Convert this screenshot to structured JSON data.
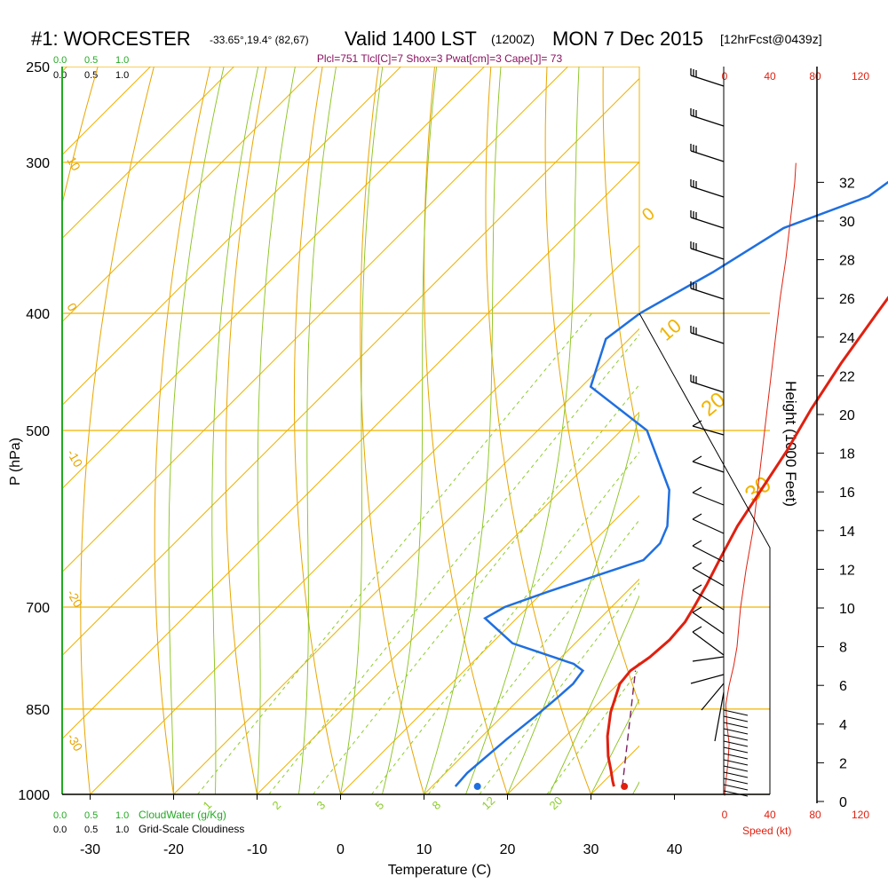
{
  "header": {
    "station": "#1: WORCESTER",
    "coords": "-33.65°,19.4° (82,67)",
    "valid": "Valid 1400 LST",
    "zulu": "(1200Z)",
    "date": "MON 7 Dec 2015",
    "forecast": "[12hrFcst@0439z]",
    "indices": "Plcl=751 Tlcl[C]=7 Shox=3 Pwat[cm]=3 Cape[J]= 73"
  },
  "cloud_scale": {
    "top_cloudwater": [
      "0.0",
      "0.5",
      "1.0"
    ],
    "top_cloudiness": [
      "0.0",
      "0.5",
      "1.0"
    ],
    "bottom_cloudwater": [
      "0.0",
      "0.5",
      "1.0"
    ],
    "bottom_cloudiness": [
      "0.0",
      "0.5",
      "1.0"
    ],
    "cloudwater_label": "CloudWater (g/Kg)",
    "cloudiness_label": "Grid-Scale Cloudiness"
  },
  "speed_axis": {
    "top_ticks": [
      "0",
      "40",
      "80",
      "120"
    ],
    "bottom_ticks": [
      "0",
      "40",
      "80",
      "120"
    ],
    "label": "Speed (kt)"
  },
  "colors": {
    "isotherm": "#f0b400",
    "dry_adiabat": "#e8a500",
    "moist_adiabat": "#88c21a",
    "mixing_ratio": "#8ccc2a",
    "temperature": "#e02010",
    "dewpoint": "#1f6fe0",
    "parcel": "#7a2060",
    "cloud_axis": "#22aa22",
    "speed": "#e02010",
    "indices_text": "#8a1060"
  },
  "chart_data": {
    "type": "line",
    "chart_kind": "skew-T log-P sounding",
    "xlabel": "Temperature (C)",
    "ylabel": "P (hPa)",
    "y2label": "Height (1000 Feet)",
    "x_ticks": [
      -30,
      -20,
      -10,
      0,
      10,
      20,
      30,
      40
    ],
    "y_ticks": [
      250,
      300,
      400,
      500,
      700,
      850,
      1000
    ],
    "y2_ticks": [
      0,
      2,
      4,
      6,
      8,
      10,
      12,
      14,
      16,
      18,
      20,
      22,
      24,
      26,
      28,
      30,
      32
    ],
    "dry_adiabat_labels": [
      "10",
      "0",
      "-10",
      "-20",
      "-30"
    ],
    "moist_adiabat_labels": [
      "0",
      "10",
      "20",
      "30"
    ],
    "mixing_ratio_labels": [
      "1",
      "2",
      "3",
      "5",
      "8",
      "12",
      "20"
    ],
    "series": [
      {
        "key": "temperature",
        "x": [
          31.8,
          31.0,
          29.5,
          27.5,
          25.0,
          22.5,
          20.2,
          19.9,
          20.6,
          20.9,
          20.6,
          19.9,
          18.7,
          17.3,
          15.4,
          13.9,
          12.3,
          10.2,
          8.3,
          6.6,
          4.8,
          3.6,
          2.0
        ],
        "y": [
          985,
          975,
          955,
          930,
          895,
          855,
          810,
          790,
          770,
          745,
          720,
          700,
          670,
          640,
          600,
          560,
          520,
          480,
          440,
          400,
          360,
          330,
          280
        ]
      },
      {
        "key": "dewpoint",
        "x": [
          12.8,
          12.6,
          13.3,
          14.0,
          14.4,
          14.6,
          14.2,
          12.3,
          2.5,
          -3.8,
          -2.8,
          0.5,
          4.3,
          8.2,
          8.2,
          7.0,
          2.9,
          -6.9,
          -18.9,
          -22.8,
          -21.8,
          -18.0,
          -14.8,
          -8.4,
          -6.9,
          -6.4,
          -6.9
        ],
        "y": [
          985,
          960,
          900,
          860,
          830,
          810,
          790,
          780,
          750,
          715,
          700,
          680,
          660,
          640,
          620,
          600,
          560,
          500,
          460,
          420,
          400,
          370,
          340,
          320,
          300,
          280,
          270
        ]
      },
      {
        "key": "parcel",
        "x": [
          32.8,
          20.5
        ],
        "y": [
          985,
          790
        ]
      }
    ],
    "surface_markers": [
      {
        "key": "temperature",
        "x": 34.0,
        "y": 985
      },
      {
        "key": "dewpoint",
        "x": 16.4,
        "y": 985
      }
    ],
    "wind_speed_profile": {
      "height_kft": [
        0.3,
        1,
        2,
        3,
        4,
        5,
        6,
        7,
        8,
        10,
        12,
        14,
        16,
        18,
        20,
        22,
        24,
        26,
        28,
        30,
        32,
        33
      ],
      "speed_kt": [
        0,
        1,
        3,
        4,
        2,
        1,
        4,
        8,
        11,
        14,
        19,
        25,
        29,
        33,
        37,
        41,
        45,
        49,
        54,
        58,
        62,
        63
      ]
    }
  }
}
